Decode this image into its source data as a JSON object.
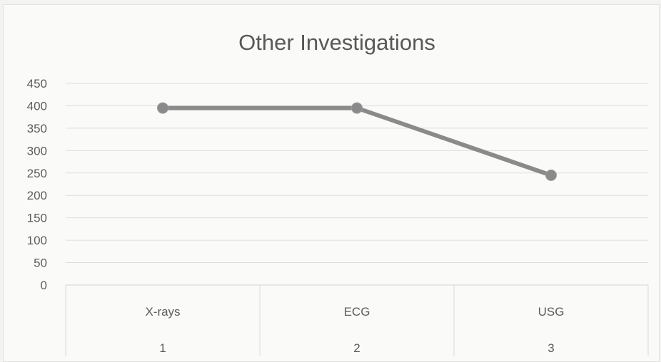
{
  "chart_data": {
    "type": "line",
    "title": "Other Investigations",
    "categories": [
      "X-rays",
      "ECG",
      "USG"
    ],
    "category_numbers": [
      "1",
      "2",
      "3"
    ],
    "values": [
      395,
      395,
      245
    ],
    "ylim": [
      0,
      450
    ],
    "yticks": [
      0,
      50,
      100,
      150,
      200,
      250,
      300,
      350,
      400,
      450
    ],
    "grid": true,
    "line_color": "#8a8a8a",
    "marker_color": "#8a8a8a",
    "grid_color": "#dededb"
  }
}
